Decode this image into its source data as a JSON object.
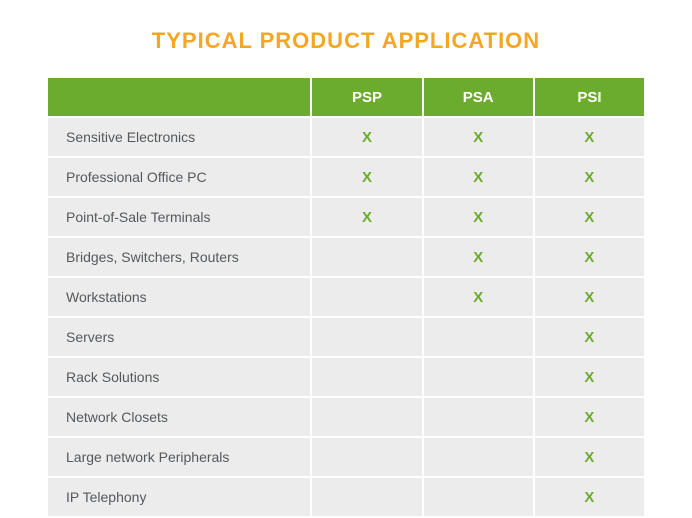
{
  "title": "TYPICAL PRODUCT APPLICATION",
  "title_color": "#f5a623",
  "title_fontsize": 22,
  "header_bg": "#6bab2e",
  "header_text_color": "#ffffff",
  "row_bg": "#ececec",
  "row_text_color": "#55595c",
  "mark_color": "#6bab2e",
  "mark_glyph": "X",
  "columns": [
    "PSP",
    "PSA",
    "PSI"
  ],
  "rows": [
    {
      "label": "Sensitive Electronics",
      "marks": [
        true,
        true,
        true
      ]
    },
    {
      "label": "Professional Office PC",
      "marks": [
        true,
        true,
        true
      ]
    },
    {
      "label": "Point-of-Sale Terminals",
      "marks": [
        true,
        true,
        true
      ]
    },
    {
      "label": "Bridges, Switchers, Routers",
      "marks": [
        false,
        true,
        true
      ]
    },
    {
      "label": "Workstations",
      "marks": [
        false,
        true,
        true
      ]
    },
    {
      "label": "Servers",
      "marks": [
        false,
        false,
        true
      ]
    },
    {
      "label": "Rack Solutions",
      "marks": [
        false,
        false,
        true
      ]
    },
    {
      "label": "Network Closets",
      "marks": [
        false,
        false,
        true
      ]
    },
    {
      "label": "Large network Peripherals",
      "marks": [
        false,
        false,
        true
      ]
    },
    {
      "label": "IP Telephony",
      "marks": [
        false,
        false,
        true
      ]
    }
  ]
}
